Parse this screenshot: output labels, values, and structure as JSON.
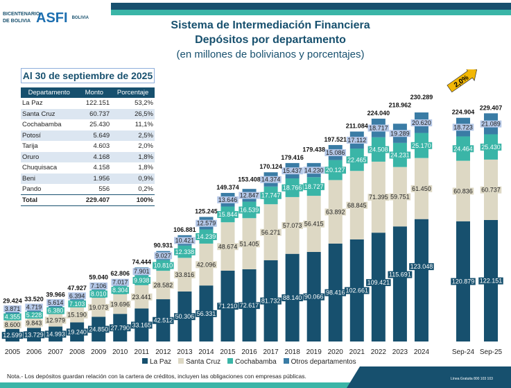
{
  "header": {
    "title": "Sistema de Intermediación Financiera",
    "title2": "Depósitos por departamento",
    "subtitle": "(en millones de bolivianos y porcentajes)",
    "logo1": "BICENTENARIO DE BOLIVIA",
    "logo2": "ASFI",
    "logo3": "BOLIVIA"
  },
  "table": {
    "caption": "Al 30 de septiembre de 2025",
    "headers": [
      "Departamento",
      "Monto",
      "Porcentaje"
    ],
    "rows": [
      [
        "La Paz",
        "122.151",
        "53,2%"
      ],
      [
        "Santa Cruz",
        "60.737",
        "26,5%"
      ],
      [
        "Cochabamba",
        "25.430",
        "11,1%"
      ],
      [
        "Potosí",
        "5.649",
        "2,5%"
      ],
      [
        "Tarija",
        "4.603",
        "2,0%"
      ],
      [
        "Oruro",
        "4.168",
        "1,8%"
      ],
      [
        "Chuquisaca",
        "4.158",
        "1,8%"
      ],
      [
        "Beni",
        "1.956",
        "0,9%"
      ],
      [
        "Pando",
        "556",
        "0,2%"
      ]
    ],
    "total": [
      "Total",
      "229.407",
      "100%"
    ]
  },
  "chart_data": {
    "type": "bar",
    "stacked": true,
    "categories": [
      "2005",
      "2006",
      "2007",
      "2008",
      "2009",
      "2010",
      "2011",
      "2012",
      "2013",
      "2014",
      "2015",
      "2016",
      "2017",
      "2018",
      "2019",
      "2020",
      "2021",
      "2022",
      "2023",
      "2024",
      "Sep-24",
      "Sep-25"
    ],
    "series": [
      {
        "name": "La Paz",
        "color": "#17506e",
        "values": [
          12599,
          13729,
          14993,
          19240,
          24850,
          27790,
          33165,
          42512,
          50306,
          56331,
          71210,
          72617,
          81732,
          88140,
          90066,
          98416,
          102661,
          109421,
          115691,
          123048,
          120879,
          122151
        ]
      },
      {
        "name": "Santa Cruz",
        "color": "#ddd8c4",
        "values": [
          8600,
          9843,
          12979,
          15190,
          19073,
          19696,
          23441,
          28582,
          33816,
          42096,
          48674,
          51405,
          56271,
          57073,
          56415,
          63892,
          68845,
          71395,
          59751,
          61450,
          60836,
          60737
        ]
      },
      {
        "name": "Cochabamba",
        "color": "#3ab5a7",
        "values": [
          4355,
          5228,
          6380,
          7103,
          8010,
          8304,
          9938,
          10810,
          12338,
          14239,
          15844,
          16539,
          17747,
          18766,
          18727,
          20127,
          22465,
          24508,
          24231,
          25170,
          24464,
          25430
        ]
      },
      {
        "name": "Otros departamentos",
        "color": "#3a7ca5",
        "values": [
          3871,
          4719,
          5614,
          6394,
          7106,
          7017,
          7901,
          9027,
          10421,
          12579,
          13646,
          12847,
          14374,
          15437,
          14230,
          15086,
          17112,
          18717,
          19289,
          20620,
          18723,
          21089
        ]
      }
    ],
    "totals": [
      29424,
      33520,
      39966,
      47927,
      59040,
      62806,
      74444,
      90931,
      106881,
      125245,
      149374,
      153408,
      170124,
      179416,
      179438,
      197521,
      211084,
      224040,
      218962,
      230289,
      224904,
      229407
    ],
    "annotation": "2,0%",
    "legend": "bottom"
  },
  "note": "Nota.- Los depósitos guardan relación con la cartera de créditos, incluyen las obligaciones con empresas públicas.",
  "footer": "Línea Gratuita 800 103 103"
}
